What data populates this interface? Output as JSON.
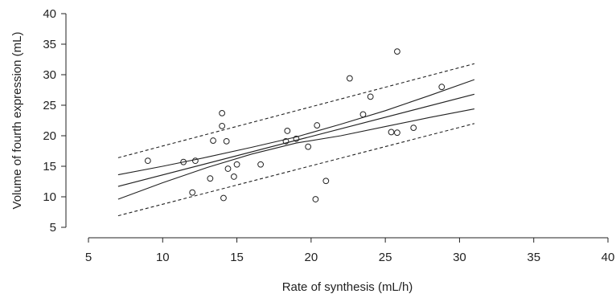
{
  "chart_data": {
    "type": "scatter",
    "xlabel": "Rate of synthesis (mL/h)",
    "ylabel": "Volume of fourth expression (mL)",
    "xlim": [
      5,
      40
    ],
    "ylim": [
      5,
      40
    ],
    "xticks": [
      5,
      10,
      15,
      20,
      25,
      30,
      35,
      40
    ],
    "yticks": [
      5,
      10,
      15,
      20,
      25,
      30,
      35,
      40
    ],
    "grid": false,
    "points": [
      {
        "x": 9.0,
        "y": 15.9
      },
      {
        "x": 11.4,
        "y": 15.7
      },
      {
        "x": 12.0,
        "y": 10.7
      },
      {
        "x": 12.2,
        "y": 15.9
      },
      {
        "x": 13.2,
        "y": 13.0
      },
      {
        "x": 13.4,
        "y": 19.2
      },
      {
        "x": 14.0,
        "y": 23.7
      },
      {
        "x": 14.0,
        "y": 21.6
      },
      {
        "x": 14.1,
        "y": 9.8
      },
      {
        "x": 14.3,
        "y": 19.1
      },
      {
        "x": 14.4,
        "y": 14.6
      },
      {
        "x": 14.8,
        "y": 13.3
      },
      {
        "x": 15.0,
        "y": 15.3
      },
      {
        "x": 16.6,
        "y": 15.3
      },
      {
        "x": 18.3,
        "y": 19.1
      },
      {
        "x": 18.4,
        "y": 20.8
      },
      {
        "x": 19.0,
        "y": 19.5
      },
      {
        "x": 19.8,
        "y": 18.2
      },
      {
        "x": 20.3,
        "y": 9.6
      },
      {
        "x": 20.4,
        "y": 21.7
      },
      {
        "x": 21.0,
        "y": 12.6
      },
      {
        "x": 22.6,
        "y": 29.4
      },
      {
        "x": 23.5,
        "y": 23.5
      },
      {
        "x": 24.0,
        "y": 26.4
      },
      {
        "x": 25.4,
        "y": 20.6
      },
      {
        "x": 25.8,
        "y": 20.5
      },
      {
        "x": 25.8,
        "y": 33.8
      },
      {
        "x": 26.9,
        "y": 21.3
      },
      {
        "x": 28.8,
        "y": 28.0
      }
    ],
    "lines": [
      {
        "kind": "fit",
        "style": "solid",
        "x": [
          7,
          31
        ],
        "y": [
          11.7,
          26.8
        ]
      },
      {
        "kind": "confidence-upper",
        "style": "solid",
        "x": [
          7,
          10,
          13,
          16,
          19,
          22,
          25,
          28,
          31
        ],
        "y": [
          13.6,
          15.0,
          16.5,
          18.1,
          19.8,
          21.9,
          24.1,
          26.6,
          29.2
        ]
      },
      {
        "kind": "confidence-lower",
        "style": "solid",
        "x": [
          7,
          10,
          13,
          16,
          19,
          22,
          25,
          28,
          31
        ],
        "y": [
          9.6,
          12.3,
          14.8,
          17.0,
          18.8,
          20.0,
          21.5,
          23.0,
          24.4
        ]
      },
      {
        "kind": "prediction-upper",
        "style": "dashed",
        "x": [
          7,
          31
        ],
        "y": [
          16.4,
          31.8
        ]
      },
      {
        "kind": "prediction-lower",
        "style": "dashed",
        "x": [
          7,
          31
        ],
        "y": [
          6.9,
          22.0
        ]
      }
    ]
  }
}
